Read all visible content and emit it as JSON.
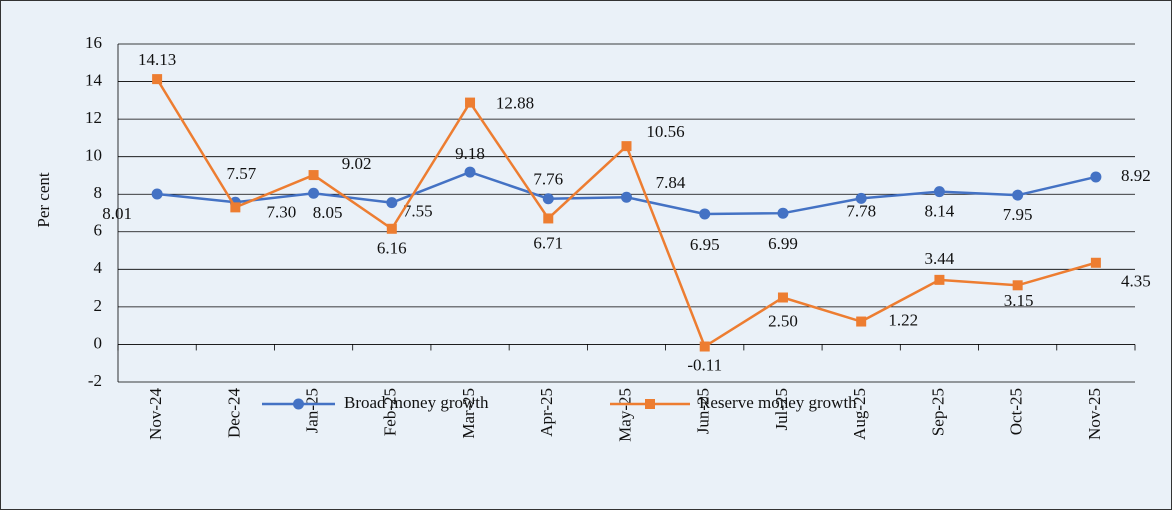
{
  "chart_data": {
    "type": "line",
    "y_label": "Per cent",
    "categories": [
      "Nov-24",
      "Dec-24",
      "Jan-25",
      "Feb-25",
      "Mar-25",
      "Apr-25",
      "May-25",
      "Jun-25",
      "Jul-25",
      "Aug-25",
      "Sep-25",
      "Oct-25",
      "Nov-25"
    ],
    "series": [
      {
        "name": "Broad money growth",
        "color": "#4472c4",
        "marker": "circle",
        "values": [
          8.01,
          7.57,
          8.05,
          7.55,
          9.18,
          7.76,
          7.84,
          6.95,
          6.99,
          7.78,
          8.14,
          7.95,
          8.92
        ],
        "value_labels": [
          "8.01",
          "7.57",
          "8.05",
          "7.55",
          "9.18",
          "7.76",
          "7.84",
          "6.95",
          "6.99",
          "7.78",
          "8.14",
          "7.95",
          "8.92"
        ]
      },
      {
        "name": "Reserve money growth",
        "color": "#ed7d31",
        "marker": "square",
        "values": [
          14.13,
          7.3,
          9.02,
          6.16,
          12.88,
          6.71,
          10.56,
          -0.11,
          2.5,
          1.22,
          3.44,
          3.15,
          4.35
        ],
        "value_labels": [
          "14.13",
          "7.30",
          "9.02",
          "6.16",
          "12.88",
          "6.71",
          "10.56",
          "-0.11",
          "2.50",
          "1.22",
          "3.44",
          "3.15",
          "4.35"
        ]
      }
    ],
    "ylim": [
      -2,
      16
    ],
    "yticks": [
      -2,
      0,
      2,
      4,
      6,
      8,
      10,
      12,
      14,
      16
    ],
    "grid": true
  }
}
